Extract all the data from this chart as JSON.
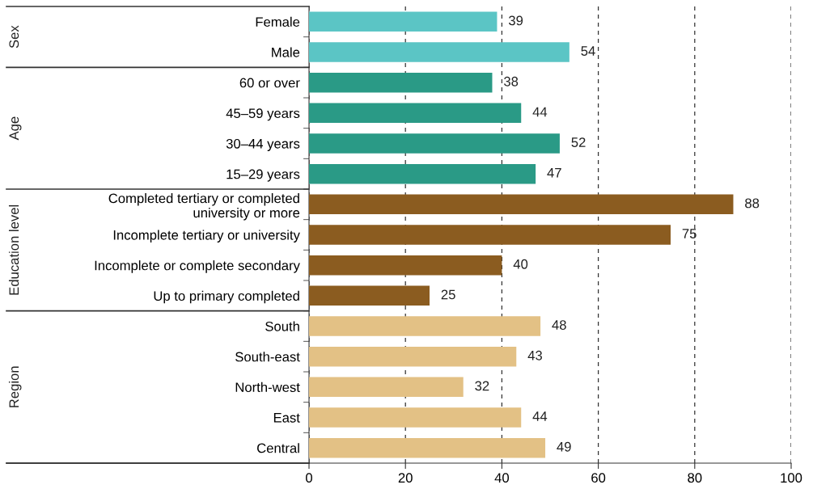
{
  "chart_data": {
    "type": "bar",
    "orientation": "horizontal",
    "categories": [
      "Female",
      "Male",
      "60 or over",
      "45–59 years",
      "30–44 years",
      "15–29 years",
      "Completed tertiary or completed\nuniversity or more",
      "Incomplete tertiary or university",
      "Incomplete or complete secondary",
      "Up to primary completed",
      "South",
      "South-east",
      "North-west",
      "East",
      "Central"
    ],
    "series": [
      {
        "color": "#5bc5c5",
        "values": [
          39,
          54,
          null,
          null,
          null,
          null,
          null,
          null,
          null,
          null,
          null,
          null,
          null,
          null,
          null
        ]
      },
      {
        "color": "#2a9a86",
        "values": [
          null,
          null,
          38,
          44,
          52,
          47,
          null,
          null,
          null,
          null,
          null,
          null,
          null,
          null,
          null
        ]
      },
      {
        "color": "#8b5c20",
        "values": [
          null,
          null,
          null,
          null,
          null,
          null,
          88,
          75,
          40,
          25,
          null,
          null,
          null,
          null,
          null
        ]
      },
      {
        "color": "#e3c185",
        "values": [
          null,
          null,
          null,
          null,
          null,
          null,
          null,
          null,
          null,
          null,
          48,
          43,
          32,
          44,
          49
        ]
      }
    ],
    "annotations": [
      "Sex",
      "Age",
      "Education level",
      "Region"
    ],
    "xlim": [
      0,
      100
    ],
    "xticks": [
      0,
      20,
      40,
      60,
      80,
      100
    ],
    "grid": "x",
    "data_labels": true,
    "legend": false
  }
}
